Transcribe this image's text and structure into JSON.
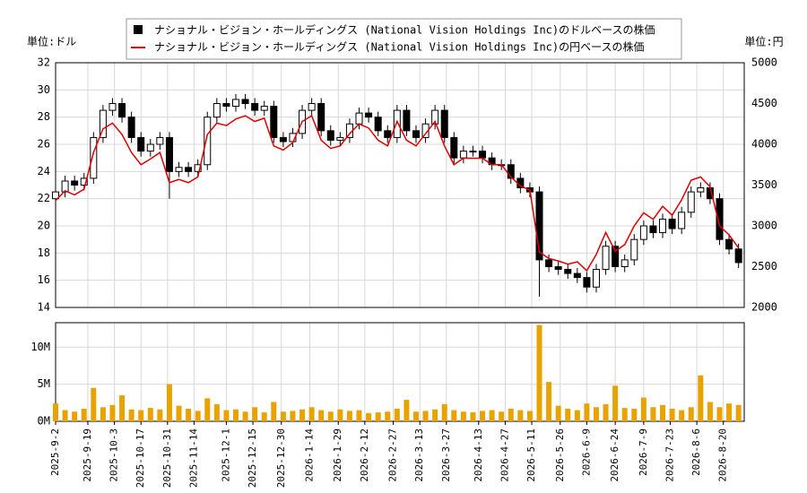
{
  "chart_data": [
    {
      "type": "candlestick",
      "y_unit_label": "単位:ドル",
      "y2_unit_label": "単位:円",
      "x": [
        "2025-9-2",
        "2025-9-7",
        "2025-9-12",
        "2025-9-17",
        "2025-9-22",
        "2025-9-27",
        "2025-10-2",
        "2025-10-7",
        "2025-10-12",
        "2025-10-17",
        "2025-10-22",
        "2025-10-27",
        "2025-11-1",
        "2025-11-6",
        "2025-11-11",
        "2025-11-16",
        "2025-11-21",
        "2025-11-26",
        "2025-12-1",
        "2025-12-6",
        "2025-12-11",
        "2025-12-16",
        "2025-12-21",
        "2025-12-26",
        "2025-12-31",
        "2026-1-5",
        "2026-1-10",
        "2026-1-15",
        "2026-1-20",
        "2026-1-25",
        "2026-1-30",
        "2026-2-4",
        "2026-2-9",
        "2026-2-14",
        "2026-2-19",
        "2026-2-24",
        "2026-3-1",
        "2026-3-6",
        "2026-3-11",
        "2026-3-16",
        "2026-3-21",
        "2026-3-26",
        "2026-3-31",
        "2026-4-5",
        "2026-4-10",
        "2026-4-15",
        "2026-4-20",
        "2026-4-25",
        "2026-4-30",
        "2026-5-5",
        "2026-5-10",
        "2026-5-15",
        "2026-5-20",
        "2026-5-25",
        "2026-5-30",
        "2026-6-4",
        "2026-6-9",
        "2026-6-14",
        "2026-6-19",
        "2026-6-24",
        "2026-6-29",
        "2026-7-4",
        "2026-7-9",
        "2026-7-14",
        "2026-7-19",
        "2026-7-24",
        "2026-7-29",
        "2026-8-3",
        "2026-8-8",
        "2026-8-13",
        "2026-8-18",
        "2026-8-23",
        "2026-8-28"
      ],
      "xlim": [
        "2025-9-2",
        "2026-8-31"
      ],
      "ylim": [
        14,
        32
      ],
      "yticks": [
        14,
        16,
        18,
        20,
        22,
        24,
        26,
        28,
        30,
        32
      ],
      "y2lim": [
        2000,
        5000
      ],
      "y2ticks": [
        2000,
        2500,
        3000,
        3500,
        4000,
        4500,
        5000
      ],
      "grid": true,
      "series": [
        {
          "name": "ナショナル・ビジョン・ホールディングス (National Vision Holdings Inc)のドルベースの株価",
          "color": "#000000",
          "open": [
            22.0,
            22.5,
            23.3,
            23.0,
            23.5,
            26.5,
            28.5,
            29.0,
            28.0,
            26.5,
            25.5,
            26.0,
            26.5,
            24.0,
            24.3,
            24.0,
            24.5,
            28.0,
            29.0,
            28.8,
            29.3,
            29.0,
            28.5,
            28.8,
            26.5,
            26.2,
            26.8,
            28.5,
            29.0,
            27.0,
            26.3,
            26.5,
            27.5,
            28.3,
            28.0,
            27.0,
            26.5,
            28.5,
            27.0,
            26.5,
            27.5,
            28.5,
            26.5,
            25.0,
            25.5,
            25.5,
            25.0,
            24.5,
            24.5,
            23.5,
            22.8,
            22.5,
            17.5,
            17.0,
            16.8,
            16.5,
            16.2,
            15.5,
            16.8,
            18.5,
            17.0,
            17.5,
            19.0,
            20.0,
            19.5,
            20.5,
            19.8,
            21.0,
            22.5,
            22.8,
            22.0,
            19.0,
            18.3
          ],
          "high": [
            22.9,
            23.7,
            23.7,
            23.9,
            26.9,
            28.9,
            29.4,
            29.4,
            28.4,
            26.9,
            26.4,
            26.9,
            26.9,
            24.7,
            24.7,
            24.9,
            28.4,
            29.4,
            29.4,
            29.7,
            29.7,
            29.4,
            29.2,
            29.2,
            26.9,
            27.2,
            28.9,
            29.4,
            29.4,
            27.4,
            26.9,
            27.9,
            28.7,
            28.7,
            28.4,
            27.4,
            28.9,
            28.9,
            27.4,
            27.9,
            28.9,
            28.9,
            26.9,
            25.9,
            25.9,
            25.9,
            25.4,
            24.9,
            24.9,
            23.9,
            23.2,
            22.9,
            17.9,
            17.4,
            17.2,
            16.9,
            16.6,
            17.2,
            18.9,
            18.9,
            17.9,
            19.4,
            20.4,
            20.4,
            20.9,
            20.9,
            21.4,
            22.9,
            23.2,
            23.2,
            22.4,
            19.4,
            18.7
          ],
          "low": [
            21.6,
            22.1,
            22.6,
            22.6,
            23.1,
            26.1,
            28.1,
            27.6,
            26.1,
            25.1,
            25.1,
            25.6,
            22.0,
            23.6,
            23.6,
            23.6,
            24.1,
            27.6,
            28.4,
            28.4,
            28.6,
            28.1,
            28.1,
            26.1,
            25.8,
            25.8,
            26.4,
            28.1,
            26.6,
            25.9,
            25.9,
            26.1,
            27.1,
            27.6,
            26.6,
            26.1,
            26.1,
            26.6,
            26.1,
            26.1,
            27.1,
            26.1,
            24.6,
            24.6,
            25.1,
            24.6,
            24.1,
            24.1,
            23.1,
            22.4,
            22.1,
            14.8,
            16.6,
            16.4,
            16.1,
            15.8,
            15.1,
            15.1,
            16.4,
            16.6,
            16.6,
            17.1,
            18.6,
            19.1,
            19.1,
            19.4,
            19.4,
            20.6,
            22.1,
            21.6,
            18.6,
            17.9,
            16.9
          ],
          "close": [
            22.5,
            23.3,
            23.0,
            23.5,
            26.5,
            28.5,
            29.0,
            28.0,
            26.5,
            25.5,
            26.0,
            26.5,
            24.0,
            24.3,
            24.0,
            24.5,
            28.0,
            29.0,
            28.8,
            29.3,
            29.0,
            28.5,
            28.8,
            26.5,
            26.2,
            26.8,
            28.5,
            29.0,
            27.0,
            26.3,
            26.5,
            27.5,
            28.3,
            28.0,
            27.0,
            26.5,
            28.5,
            27.0,
            26.5,
            27.5,
            28.5,
            26.5,
            25.0,
            25.5,
            25.5,
            25.0,
            24.5,
            24.5,
            23.5,
            22.8,
            22.5,
            17.5,
            17.0,
            16.8,
            16.5,
            16.2,
            15.5,
            16.8,
            18.5,
            17.0,
            17.5,
            19.0,
            20.0,
            19.5,
            20.5,
            19.8,
            21.0,
            22.5,
            22.8,
            22.0,
            19.0,
            18.3,
            17.3
          ]
        },
        {
          "name": "ナショナル・ビジョン・ホールディングス (National Vision Holdings Inc)の円ベースの株価",
          "color": "#dd0000",
          "axis": "y2",
          "values": [
            3310,
            3430,
            3380,
            3450,
            3900,
            4190,
            4260,
            4120,
            3900,
            3750,
            3820,
            3900,
            3530,
            3570,
            3530,
            3600,
            4120,
            4260,
            4230,
            4310,
            4350,
            4280,
            4320,
            3980,
            3930,
            4020,
            4280,
            4350,
            4050,
            3950,
            3980,
            4130,
            4250,
            4200,
            4050,
            3980,
            4280,
            4050,
            3980,
            4130,
            4280,
            3980,
            3750,
            3830,
            3830,
            3830,
            3750,
            3750,
            3600,
            3490,
            3440,
            2680,
            2600,
            2570,
            2530,
            2560,
            2450,
            2650,
            2920,
            2690,
            2770,
            3000,
            3160,
            3080,
            3240,
            3130,
            3320,
            3560,
            3600,
            3480,
            3000,
            2890,
            2730
          ]
        }
      ]
    },
    {
      "type": "bar",
      "color": "#e8a300",
      "x": [
        "2025-9-2",
        "2025-9-7",
        "2025-9-12",
        "2025-9-17",
        "2025-9-22",
        "2025-9-27",
        "2025-10-2",
        "2025-10-7",
        "2025-10-12",
        "2025-10-17",
        "2025-10-22",
        "2025-10-27",
        "2025-11-1",
        "2025-11-6",
        "2025-11-11",
        "2025-11-16",
        "2025-11-21",
        "2025-11-26",
        "2025-12-1",
        "2025-12-6",
        "2025-12-11",
        "2025-12-16",
        "2025-12-21",
        "2025-12-26",
        "2025-12-31",
        "2026-1-5",
        "2026-1-10",
        "2026-1-15",
        "2026-1-20",
        "2026-1-25",
        "2026-1-30",
        "2026-2-4",
        "2026-2-9",
        "2026-2-14",
        "2026-2-19",
        "2026-2-24",
        "2026-3-1",
        "2026-3-6",
        "2026-3-11",
        "2026-3-16",
        "2026-3-21",
        "2026-3-26",
        "2026-3-31",
        "2026-4-5",
        "2026-4-10",
        "2026-4-15",
        "2026-4-20",
        "2026-4-25",
        "2026-4-30",
        "2026-5-5",
        "2026-5-10",
        "2026-5-15",
        "2026-5-20",
        "2026-5-25",
        "2026-5-30",
        "2026-6-4",
        "2026-6-9",
        "2026-6-14",
        "2026-6-19",
        "2026-6-24",
        "2026-6-29",
        "2026-7-4",
        "2026-7-9",
        "2026-7-14",
        "2026-7-19",
        "2026-7-24",
        "2026-7-29",
        "2026-8-3",
        "2026-8-8",
        "2026-8-13",
        "2026-8-18",
        "2026-8-23",
        "2026-8-28"
      ],
      "values": [
        2400000,
        1500000,
        1300000,
        1700000,
        4500000,
        1900000,
        2200000,
        3500000,
        1600000,
        1500000,
        1800000,
        1600000,
        5000000,
        2100000,
        1700000,
        1400000,
        3100000,
        2300000,
        1500000,
        1600000,
        1300000,
        1900000,
        1200000,
        2600000,
        1300000,
        1400000,
        1600000,
        1900000,
        1500000,
        1300000,
        1600000,
        1400000,
        1500000,
        1100000,
        1200000,
        1300000,
        1700000,
        2900000,
        1300000,
        1400000,
        1600000,
        2300000,
        1500000,
        1300000,
        1200000,
        1400000,
        1500000,
        1300000,
        1700000,
        1500000,
        1400000,
        13000000,
        5300000,
        2100000,
        1700000,
        1500000,
        2400000,
        1900000,
        2300000,
        4800000,
        1800000,
        1700000,
        3200000,
        1900000,
        2200000,
        1700000,
        1500000,
        1900000,
        6200000,
        2600000,
        1900000,
        2400000,
        2200000
      ],
      "xlim": [
        "2025-9-2",
        "2026-8-31"
      ],
      "xticks": [
        "2025-9-2",
        "2025-9-19",
        "2025-10-3",
        "2025-10-17",
        "2025-10-31",
        "2025-11-14",
        "2025-12-1",
        "2025-12-15",
        "2025-12-30",
        "2026-1-14",
        "2026-1-29",
        "2026-2-12",
        "2026-2-27",
        "2026-3-13",
        "2026-3-27",
        "2026-4-13",
        "2026-4-27",
        "2026-5-11",
        "2026-5-26",
        "2026-6-9",
        "2026-6-24",
        "2026-7-9",
        "2026-7-23",
        "2026-8-6",
        "2026-8-20"
      ],
      "ylim": [
        0,
        13300000
      ],
      "yticks": [
        {
          "value": 0,
          "label": "0M"
        },
        {
          "value": 5000000,
          "label": "5M"
        },
        {
          "value": 10000000,
          "label": "10M"
        }
      ],
      "grid": true
    }
  ]
}
